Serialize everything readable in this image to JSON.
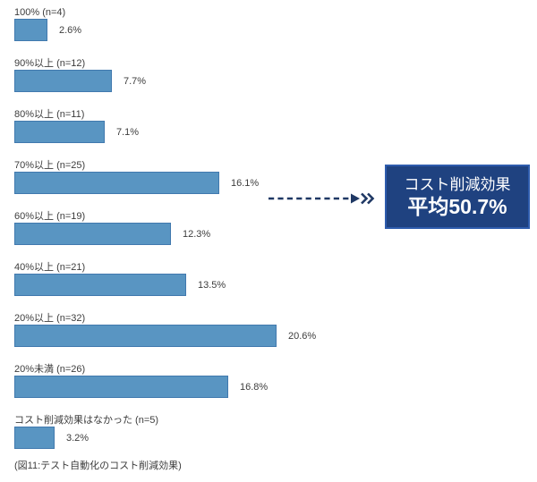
{
  "chart_data": {
    "type": "bar",
    "orientation": "horizontal",
    "title": "",
    "caption": "(図11:テスト自動化のコスト削減効果)",
    "unit": "%",
    "xlim": [
      0,
      22
    ],
    "grid": false,
    "legend": false,
    "categories": [
      "100% (n=4)",
      "90%以上 (n=12)",
      "80%以上 (n=11)",
      "70%以上 (n=25)",
      "60%以上 (n=19)",
      "40%以上 (n=21)",
      "20%以上 (n=32)",
      "20%未満 (n=26)",
      "コスト削減効果はなかった (n=5)"
    ],
    "values": [
      2.6,
      7.7,
      7.1,
      16.1,
      12.3,
      13.5,
      20.6,
      16.8,
      3.2
    ],
    "value_labels": [
      "2.6%",
      "7.7%",
      "7.1%",
      "16.1%",
      "12.3%",
      "13.5%",
      "20.6%",
      "16.8%",
      "3.2%"
    ],
    "sample_sizes": [
      4,
      12,
      11,
      25,
      19,
      21,
      32,
      26,
      5
    ],
    "annotation": {
      "line1": "コスト削減効果",
      "line2": "平均50.7%"
    }
  },
  "colors": {
    "bar_fill": "#5995c2",
    "bar_border": "#4179ae",
    "callout_fill": "#1f4280",
    "callout_border": "#2e5cad",
    "arrow": "#1f3864",
    "text": "#3d3d3d",
    "bg": "#ffffff"
  }
}
